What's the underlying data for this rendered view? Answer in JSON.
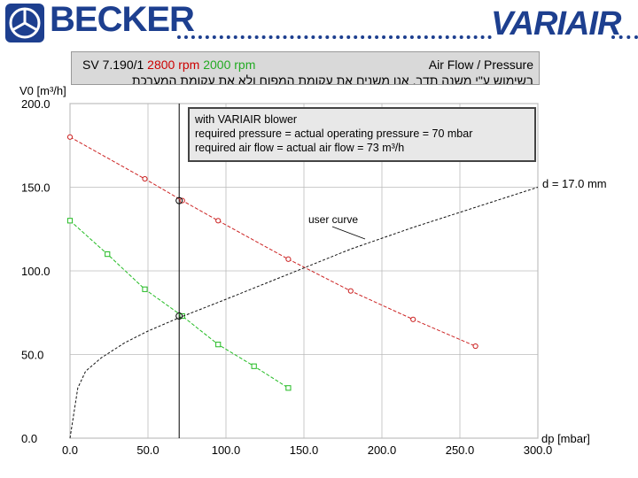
{
  "header": {
    "brand_left": "BECKER",
    "brand_right": "VARIAIR",
    "brand_color": "#1d3f8f"
  },
  "title_panel": {
    "model": "SV 7.190/1",
    "speed_1": "2800 rpm",
    "speed_2": "2000 rpm",
    "right_title": "Air Flow / Pressure",
    "hebrew_note": "בשימוש ע\"י משנה תדר, אנו משנים את עקומת המפוח ולא את עקומת המערכת"
  },
  "info_box": {
    "line1": "with VARIAIR blower",
    "line2": "required pressure = actual operating pressure = 70 mbar",
    "line3": "required air flow = actual air flow = 73 m³/h"
  },
  "chart_data": {
    "type": "line",
    "ylabel": "V0 [m³/h]",
    "xlabel": "dp [mbar]",
    "xlim": [
      0,
      300
    ],
    "ylim": [
      0,
      200
    ],
    "x_ticks": [
      "0.0",
      "50.0",
      "100.0",
      "150.0",
      "200.0",
      "250.0",
      "300.0"
    ],
    "y_ticks": [
      "0.0",
      "50.0",
      "100.0",
      "150.0",
      "200.0"
    ],
    "x_tick_values": [
      0,
      50,
      100,
      150,
      200,
      250,
      300
    ],
    "y_tick_values": [
      0,
      50,
      100,
      150,
      200
    ],
    "grid": true,
    "series": [
      {
        "color": "#cc2222",
        "marker": "circle",
        "x": [
          0,
          48,
          72,
          95,
          140,
          180,
          220,
          260
        ],
        "y": [
          180,
          155,
          142,
          130,
          107,
          88,
          71,
          55
        ]
      },
      {
        "color": "#22bb22",
        "marker": "square",
        "x": [
          0,
          24,
          48,
          72,
          95,
          118,
          140
        ],
        "y": [
          130,
          110,
          89,
          73,
          56,
          43,
          30
        ]
      },
      {
        "color": "#111111",
        "marker": "none",
        "dashed": true,
        "x": [
          0,
          5,
          10,
          20,
          35,
          50,
          70,
          100,
          140,
          180,
          220,
          260,
          300
        ],
        "y": [
          0,
          30,
          40,
          48,
          57,
          64,
          72,
          83,
          98,
          113,
          126,
          138,
          150
        ]
      }
    ],
    "operating_point": {
      "x": 70,
      "y": 73
    },
    "annotations": {
      "user_curve": "user curve",
      "diameter": "d = 17.0 mm"
    }
  }
}
